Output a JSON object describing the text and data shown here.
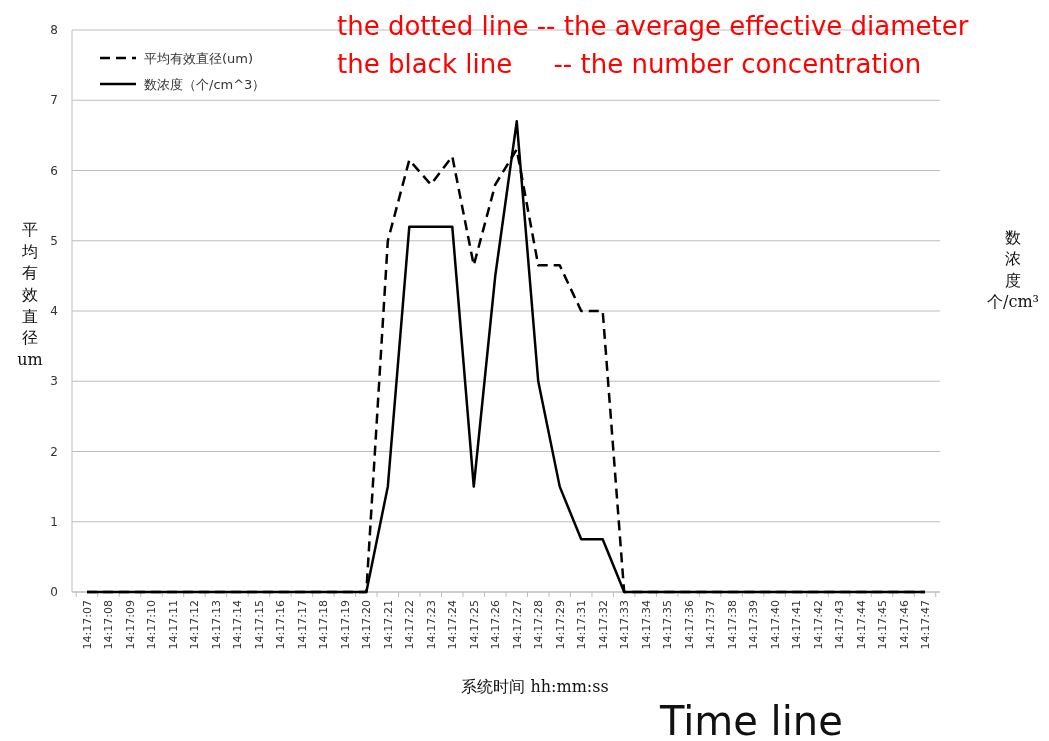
{
  "chart_data": {
    "type": "line",
    "xlabel": "系统时间 hh:mm:ss",
    "ylabel": "平均有效直径um",
    "y2label": "数浓度个/cm³",
    "annotations": [
      "the dotted line -- the average effective diameter",
      "the black line     -- the number concentration",
      "Time line"
    ],
    "categories": [
      "14:17:07",
      "14:17:08",
      "14:17:09",
      "14:17:10",
      "14:17:11",
      "14:17:12",
      "14:17:13",
      "14:17:14",
      "14:17:15",
      "14:17:16",
      "14:17:17",
      "14:17:18",
      "14:17:19",
      "14:17:20",
      "14:17:21",
      "14:17:22",
      "14:17:23",
      "14:17:24",
      "14:17:25",
      "14:17:26",
      "14:17:27",
      "14:17:28",
      "14:17:29",
      "14:17:31",
      "14:17:32",
      "14:17:33",
      "14:17:34",
      "14:17:35",
      "14:17:36",
      "14:17:37",
      "14:17:38",
      "14:17:39",
      "14:17:40",
      "14:17:41",
      "14:17:42",
      "14:17:43",
      "14:17:44",
      "14:17:45",
      "14:17:46",
      "14:17:47"
    ],
    "series": [
      {
        "name": "平均有效直径(um)",
        "color": "#000000",
        "line_style": "dashed",
        "values": [
          0,
          0,
          0,
          0,
          0,
          0,
          0,
          0,
          0,
          0,
          0,
          0,
          0,
          0,
          5.0,
          6.15,
          5.8,
          6.2,
          4.65,
          5.8,
          6.3,
          4.65,
          4.65,
          4.0,
          4.0,
          0,
          0,
          0,
          0,
          0,
          0,
          0,
          0,
          0,
          0,
          0,
          0,
          0,
          0,
          0
        ]
      },
      {
        "name": "数浓度（个/cm^3）",
        "color": "#000000",
        "line_style": "solid",
        "values": [
          0,
          0,
          0,
          0,
          0,
          0,
          0,
          0,
          0,
          0,
          0,
          0,
          0,
          0,
          1.5,
          5.2,
          5.2,
          5.2,
          1.5,
          4.5,
          6.7,
          3.0,
          1.5,
          0.75,
          0.75,
          0,
          0,
          0,
          0,
          0,
          0,
          0,
          0,
          0,
          0,
          0,
          0,
          0,
          0,
          0
        ]
      }
    ],
    "ylim": [
      0,
      8
    ],
    "yticks": [
      0,
      1,
      2,
      3,
      4,
      5,
      6,
      7,
      8
    ],
    "grid": "y",
    "legend": "top left"
  }
}
